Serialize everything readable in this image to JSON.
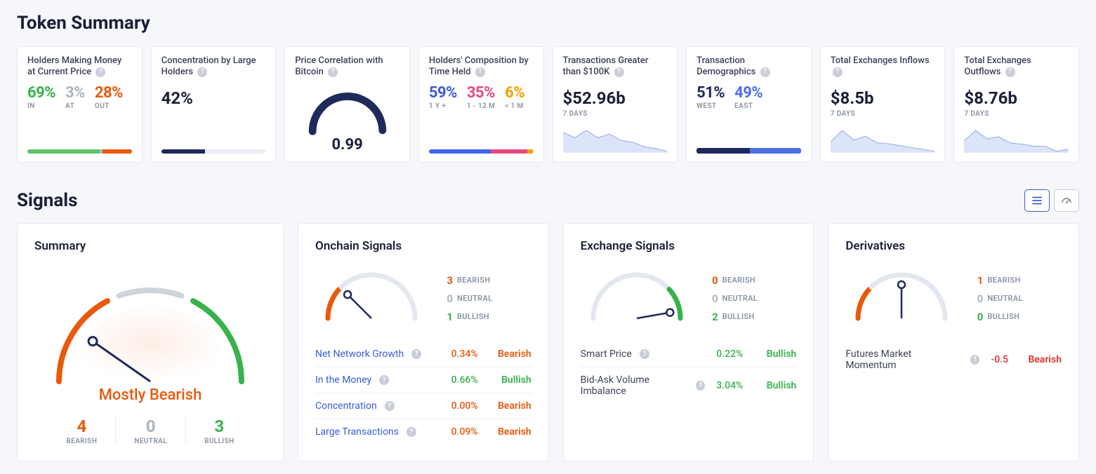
{
  "colors": {
    "green": "#37b24d",
    "green_light": "#5cc46a",
    "red": "#e8590c",
    "red2": "#e03131",
    "grey": "#adb5bd",
    "grey_light": "#ced4da",
    "blue": "#4263eb",
    "navy": "#1e2a5a",
    "pink": "#e64980",
    "amber": "#f59f00",
    "track": "#e8ecf4",
    "spark_fill": "#dbe4f9",
    "spark_line": "#9db4f0"
  },
  "token_summary": {
    "title": "Token Summary",
    "cards": {
      "holders_money": {
        "title": "Holders Making Money at Current Price",
        "in": {
          "pct": "69%",
          "label": "IN",
          "color": "#5cc46a"
        },
        "at": {
          "pct": "3%",
          "label": "AT",
          "color": "#adb5bd"
        },
        "out": {
          "pct": "28%",
          "label": "OUT",
          "color": "#e8590c"
        },
        "bar": [
          {
            "color": "#5cc46a",
            "pct": 69
          },
          {
            "color": "#adb5bd",
            "pct": 3
          },
          {
            "color": "#e8590c",
            "pct": 28
          }
        ]
      },
      "concentration": {
        "title": "Concentration by Large Holders",
        "value": "42%",
        "bar": [
          {
            "color": "#1e2a5a",
            "pct": 42
          },
          {
            "color": "#e8ecf4",
            "pct": 58
          }
        ]
      },
      "price_corr": {
        "title": "Price Correlation with Bitcoin",
        "value": "0.99",
        "gauge": {
          "value": 0.99,
          "min": 0,
          "max": 1,
          "active_color": "#1e2a5a",
          "track_color": "#e8ecf4"
        }
      },
      "holders_time": {
        "title": "Holders' Composition by Time Held",
        "y1": {
          "pct": "59%",
          "label": "1 Y +",
          "color": "#4263eb"
        },
        "m1_12": {
          "pct": "35%",
          "label": "1 - 12 M",
          "color": "#e64980"
        },
        "m1": {
          "pct": "6%",
          "label": "< 1 M",
          "color": "#f59f00"
        },
        "bar": [
          {
            "color": "#4263eb",
            "pct": 59
          },
          {
            "color": "#e64980",
            "pct": 35
          },
          {
            "color": "#f59f00",
            "pct": 6
          }
        ]
      },
      "tx_100k": {
        "title": "Transactions Greater than $100K",
        "value": "$52.96b",
        "sub": "7 DAYS",
        "spark": [
          28,
          22,
          30,
          22,
          26,
          19,
          17,
          12,
          10,
          7
        ]
      },
      "tx_demo": {
        "title": "Transaction Demographics",
        "west": {
          "pct": "51%",
          "label": "WEST",
          "color": "#1e2a5a"
        },
        "east": {
          "pct": "49%",
          "label": "EAST",
          "color": "#4f6fe3"
        },
        "bar": [
          {
            "color": "#1e2a5a",
            "pct": 51
          },
          {
            "color": "#4f6fe3",
            "pct": 49
          }
        ]
      },
      "inflows": {
        "title": "Total Exchanges Inflows",
        "value": "$8.5b",
        "sub": "7 DAYS",
        "spark": [
          16,
          28,
          18,
          22,
          15,
          14,
          12,
          10,
          8,
          6
        ]
      },
      "outflows": {
        "title": "Total Exchanges Outflows",
        "value": "$8.76b",
        "sub": "7 DAYS",
        "spark": [
          18,
          28,
          20,
          22,
          16,
          15,
          13,
          13,
          8,
          10
        ]
      }
    }
  },
  "signals": {
    "title": "Signals",
    "view": "list",
    "summary": {
      "title": "Summary",
      "label": "Mostly Bearish",
      "label_color": "#e8590c",
      "needle_angle": -55,
      "counts": {
        "bearish": {
          "n": "4",
          "label": "BEARISH",
          "color": "#e8590c"
        },
        "neutral": {
          "n": "0",
          "label": "NEUTRAL",
          "color": "#adb5bd"
        },
        "bullish": {
          "n": "3",
          "label": "BULLISH",
          "color": "#37b24d"
        }
      },
      "gauge_segments": [
        {
          "color": "#e8590c",
          "from": -90,
          "to": -28
        },
        {
          "color": "#ced4da",
          "from": -20,
          "to": 20
        },
        {
          "color": "#37b24d",
          "from": 28,
          "to": 90
        }
      ],
      "gauge_inner_fill": "#fdeee6"
    },
    "groups": [
      {
        "title": "Onchain Signals",
        "needle_angle": -45,
        "counts": {
          "bearish": "3",
          "neutral": "0",
          "bullish": "1"
        },
        "count_colors": {
          "bearish": "#e8590c",
          "neutral": "#adb5bd",
          "bullish": "#37b24d"
        },
        "gauge_segments": [
          {
            "color": "#e8590c",
            "from": -90,
            "to": -48
          },
          {
            "color": "#e3e7ef",
            "from": -44,
            "to": 90
          }
        ],
        "items": [
          {
            "name": "Net Network Growth",
            "link": true,
            "value": "0.34%",
            "verdict": "Bearish",
            "v_color": "#e8590c"
          },
          {
            "name": "In the Money",
            "link": true,
            "value": "0.66%",
            "verdict": "Bullish",
            "v_color": "#37b24d"
          },
          {
            "name": "Concentration",
            "link": true,
            "value": "0.00%",
            "verdict": "Bearish",
            "v_color": "#e8590c"
          },
          {
            "name": "Large Transactions",
            "link": true,
            "value": "0.09%",
            "verdict": "Bearish",
            "v_color": "#e8590c"
          }
        ]
      },
      {
        "title": "Exchange Signals",
        "needle_angle": 80,
        "counts": {
          "bearish": "0",
          "neutral": "0",
          "bullish": "2"
        },
        "count_colors": {
          "bearish": "#e8590c",
          "neutral": "#adb5bd",
          "bullish": "#37b24d"
        },
        "gauge_segments": [
          {
            "color": "#e3e7ef",
            "from": -90,
            "to": 44
          },
          {
            "color": "#37b24d",
            "from": 48,
            "to": 90
          }
        ],
        "items": [
          {
            "name": "Smart Price",
            "link": false,
            "value": "0.22%",
            "verdict": "Bullish",
            "v_color": "#37b24d"
          },
          {
            "name": "Bid-Ask Volume Imbalance",
            "link": false,
            "value": "3.04%",
            "verdict": "Bullish",
            "v_color": "#37b24d"
          }
        ]
      },
      {
        "title": "Derivatives",
        "needle_angle": 0,
        "counts": {
          "bearish": "1",
          "neutral": "0",
          "bullish": "0"
        },
        "count_colors": {
          "bearish": "#e8590c",
          "neutral": "#adb5bd",
          "bullish": "#37b24d"
        },
        "gauge_segments": [
          {
            "color": "#e8590c",
            "from": -90,
            "to": -48
          },
          {
            "color": "#e3e7ef",
            "from": -44,
            "to": 90
          }
        ],
        "items": [
          {
            "name": "Futures Market Momentum",
            "link": false,
            "value": "-0.5",
            "verdict": "Bearish",
            "v_color": "#e03131",
            "val_color": "#e03131"
          }
        ]
      }
    ],
    "count_labels": {
      "bearish": "BEARISH",
      "neutral": "NEUTRAL",
      "bullish": "BULLISH"
    }
  }
}
